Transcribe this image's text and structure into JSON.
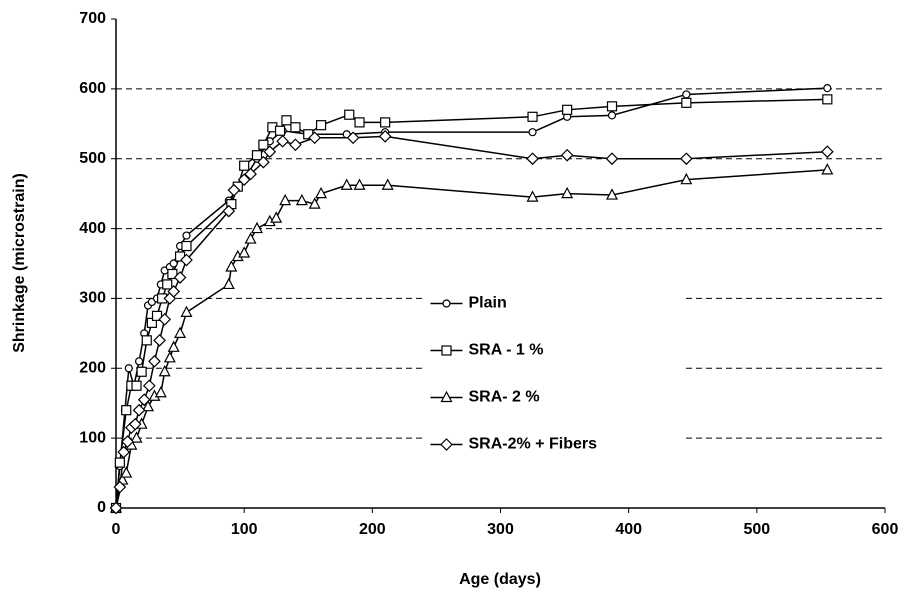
{
  "chart_data": {
    "type": "line",
    "xlabel": "Age (days)",
    "ylabel": "Shrinkage (microstrain)",
    "xlim": [
      0,
      600
    ],
    "xticks": [
      0,
      100,
      200,
      300,
      400,
      500,
      600
    ],
    "ylim": [
      0,
      700
    ],
    "yticks": [
      0,
      100,
      200,
      300,
      400,
      500,
      600,
      700
    ],
    "grid": true,
    "legend": "center",
    "series": [
      {
        "name": "Plain",
        "color": "#000000",
        "marker": "circle",
        "x": [
          0,
          3,
          7,
          10,
          14,
          18,
          22,
          25,
          28,
          32,
          35,
          38,
          42,
          45,
          50,
          55,
          88,
          100,
          110,
          120,
          130,
          150,
          180,
          210,
          325,
          352,
          387,
          445,
          555
        ],
        "values": [
          0,
          60,
          140,
          200,
          175,
          210,
          250,
          290,
          295,
          300,
          320,
          340,
          345,
          350,
          375,
          390,
          440,
          470,
          500,
          525,
          540,
          535,
          535,
          538,
          538,
          560,
          562,
          592,
          601
        ]
      },
      {
        "name": "SRA - 1 %",
        "color": "#000000",
        "marker": "square",
        "x": [
          0,
          3,
          8,
          12,
          16,
          20,
          24,
          28,
          32,
          36,
          40,
          44,
          50,
          55,
          90,
          95,
          100,
          110,
          115,
          122,
          128,
          133,
          140,
          150,
          160,
          182,
          190,
          210,
          325,
          352,
          387,
          445,
          555
        ],
        "values": [
          0,
          65,
          140,
          175,
          175,
          195,
          240,
          265,
          275,
          300,
          320,
          335,
          360,
          375,
          435,
          460,
          490,
          505,
          520,
          545,
          540,
          555,
          545,
          535,
          548,
          563,
          552,
          552,
          560,
          570,
          575,
          580,
          585
        ]
      },
      {
        "name": "SRA- 2 %",
        "color": "#000000",
        "marker": "triangle",
        "x": [
          0,
          5,
          8,
          12,
          16,
          20,
          25,
          30,
          35,
          38,
          42,
          45,
          50,
          55,
          88,
          90,
          95,
          100,
          105,
          110,
          120,
          125,
          132,
          145,
          155,
          160,
          180,
          190,
          212,
          325,
          352,
          387,
          445,
          555
        ],
        "values": [
          0,
          40,
          50,
          90,
          100,
          120,
          145,
          160,
          165,
          195,
          215,
          230,
          250,
          280,
          320,
          345,
          360,
          365,
          385,
          400,
          410,
          415,
          440,
          440,
          435,
          450,
          462,
          462,
          462,
          445,
          450,
          448,
          470,
          484
        ]
      },
      {
        "name": "SRA-2% + Fibers",
        "color": "#000000",
        "marker": "diamond",
        "x": [
          0,
          3,
          6,
          9,
          12,
          15,
          18,
          22,
          26,
          30,
          34,
          38,
          42,
          45,
          50,
          55,
          88,
          92,
          100,
          105,
          115,
          120,
          130,
          140,
          155,
          185,
          210,
          325,
          352,
          387,
          445,
          555
        ],
        "values": [
          0,
          30,
          80,
          95,
          115,
          120,
          140,
          155,
          175,
          210,
          240,
          270,
          300,
          310,
          330,
          355,
          425,
          455,
          470,
          478,
          495,
          510,
          525,
          520,
          530,
          530,
          532,
          500,
          505,
          500,
          500,
          510
        ]
      }
    ]
  }
}
